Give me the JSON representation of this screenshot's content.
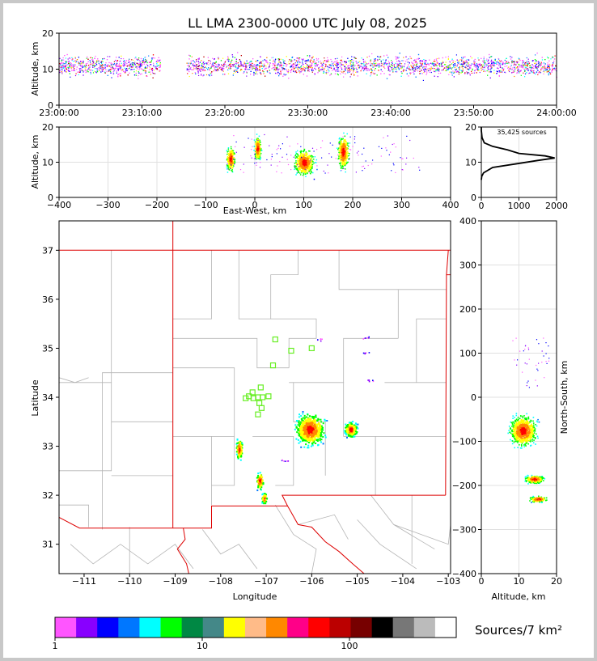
{
  "title": "LL LMA 2300-0000 UTC July 08, 2025",
  "colors": {
    "map_state_border": "#dd0000",
    "county_border": "#b4b4b4",
    "station_marker": "#66ee22",
    "grid": "#e0e0e0"
  },
  "chart_data": [
    {
      "type": "scatter",
      "panel": "altitude-time",
      "ylabel": "Altitude, km",
      "ylim": [
        0,
        20
      ],
      "yticks": [
        "0",
        "10",
        "20"
      ],
      "xticks": [
        "23:00:00",
        "23:10:00",
        "23:20:00",
        "23:30:00",
        "23:40:00",
        "23:50:00",
        "24:00:00"
      ],
      "xlim": [
        "23:00:00",
        "24:00:00"
      ],
      "data_gap": [
        "23:12:00",
        "23:15:00"
      ],
      "source_band_km": [
        8,
        14
      ]
    },
    {
      "type": "scatter",
      "panel": "altitude-east-west",
      "ylabel": "Altitude, km",
      "xlabel": "East-West, km",
      "xlim": [
        -400,
        400
      ],
      "ylim": [
        0,
        20
      ],
      "xticks": [
        "−400",
        "−300",
        "−200",
        "−100",
        "0",
        "100",
        "200",
        "300",
        "400"
      ],
      "yticks": [
        "0",
        "10",
        "20"
      ],
      "clusters": [
        {
          "x": -50,
          "z": 11
        },
        {
          "x": 5,
          "z": 14
        },
        {
          "x": 100,
          "z": 10
        },
        {
          "x": 180,
          "z": 13
        }
      ]
    },
    {
      "type": "line",
      "panel": "altitude-histogram",
      "annotation": "35,425 sources",
      "xlim": [
        0,
        2000
      ],
      "ylim": [
        0,
        20
      ],
      "xticks": [
        "0",
        "1000",
        "2000"
      ],
      "yticks": [
        "0",
        "10",
        "20"
      ],
      "points": [
        [
          0,
          20
        ],
        [
          0,
          19
        ],
        [
          20,
          17
        ],
        [
          80,
          15.5
        ],
        [
          300,
          14.5
        ],
        [
          700,
          13.5
        ],
        [
          1000,
          12.5
        ],
        [
          1700,
          11.8
        ],
        [
          1950,
          11.2
        ],
        [
          1500,
          10.5
        ],
        [
          900,
          9.5
        ],
        [
          300,
          8.5
        ],
        [
          60,
          7
        ],
        [
          10,
          6
        ],
        [
          0,
          5
        ]
      ]
    },
    {
      "type": "scatter",
      "panel": "plan-view-map",
      "xlabel": "Longitude",
      "ylabel": "Latitude",
      "xlim": [
        -111.55,
        -102.95
      ],
      "ylim": [
        30.4,
        37.6
      ],
      "xticks": [
        "−111",
        "−110",
        "−109",
        "−108",
        "−107",
        "−106",
        "−105",
        "−104",
        "−103"
      ],
      "yticks": [
        "31",
        "32",
        "33",
        "34",
        "35",
        "36",
        "37"
      ],
      "storms": [
        {
          "lon": -106.05,
          "lat": 33.35
        },
        {
          "lon": -105.15,
          "lat": 33.35
        },
        {
          "lon": -107.6,
          "lat": 32.95
        },
        {
          "lon": -107.15,
          "lat": 32.3
        },
        {
          "lon": -107.05,
          "lat": 31.95
        }
      ],
      "stations": [
        [
          -106.8,
          35.18
        ],
        [
          -106.45,
          34.95
        ],
        [
          -106.0,
          35.0
        ],
        [
          -106.85,
          34.65
        ],
        [
          -107.38,
          34.02
        ],
        [
          -107.28,
          33.98
        ],
        [
          -107.18,
          34.0
        ],
        [
          -107.08,
          34.0
        ],
        [
          -106.95,
          34.02
        ],
        [
          -107.12,
          34.2
        ],
        [
          -107.15,
          33.88
        ],
        [
          -107.1,
          33.78
        ],
        [
          -107.18,
          33.65
        ],
        [
          -107.3,
          34.1
        ],
        [
          -107.45,
          33.98
        ]
      ]
    },
    {
      "type": "scatter",
      "panel": "north-south-altitude",
      "xlabel": "Altitude, km",
      "ylabel": "North-South, km",
      "xlim": [
        0,
        20
      ],
      "ylim": [
        -400,
        400
      ],
      "xticks": [
        "0",
        "10",
        "20"
      ],
      "yticks": [
        "400",
        "300",
        "200",
        "100",
        "0",
        "−100",
        "−200",
        "−300",
        "−400"
      ],
      "clusters": [
        {
          "z": 11,
          "y": -75
        },
        {
          "z": 14,
          "y": -185
        },
        {
          "z": 15,
          "y": -230
        }
      ]
    }
  ],
  "colorbar": {
    "label": "Sources/7 km²",
    "ticks": [
      "1",
      "10",
      "100"
    ],
    "colors": [
      "#ff55ff",
      "#8800ff",
      "#0000ff",
      "#0077ff",
      "#00ffff",
      "#00ff00",
      "#008844",
      "#448888",
      "#ffff00",
      "#ffbb88",
      "#ff8800",
      "#ff0088",
      "#ff0000",
      "#bb0000",
      "#770000",
      "#000000",
      "#777777",
      "#bbbbbb",
      "#ffffff"
    ]
  }
}
